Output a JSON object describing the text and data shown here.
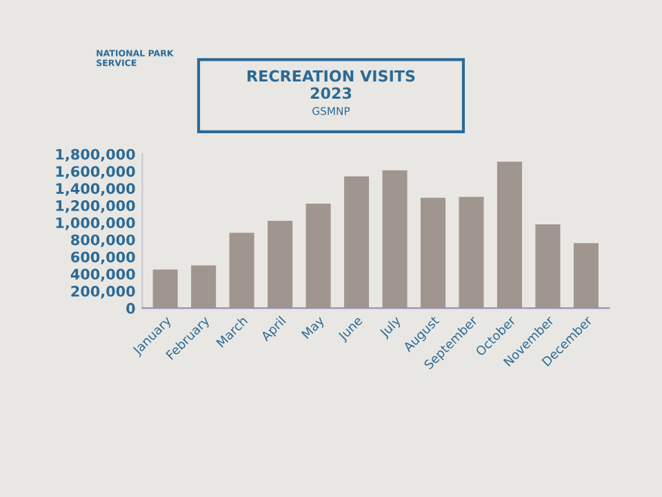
{
  "chart_data": {
    "type": "bar",
    "title": "RECREATION VISITS\n2023",
    "subtitle": "GSMNP",
    "annotations": [
      "NATIONAL PARK\nSERVICE"
    ],
    "categories": [
      "January",
      "February",
      "March",
      "April",
      "May",
      "June",
      "July",
      "August",
      "September",
      "October",
      "November",
      "December"
    ],
    "values": [
      450000,
      500000,
      880000,
      1020000,
      1220000,
      1540000,
      1610000,
      1290000,
      1300000,
      1710000,
      980000,
      760000
    ],
    "color": "#a0958f",
    "ylim": [
      0,
      1800000
    ],
    "yticks": [
      {
        "value": 0,
        "label": "0"
      },
      {
        "value": 200000,
        "label": "200,000"
      },
      {
        "value": 400000,
        "label": "400,000"
      },
      {
        "value": 600000,
        "label": "600,000"
      },
      {
        "value": 800000,
        "label": "800,000"
      },
      {
        "value": 1000000,
        "label": "1,000,000"
      },
      {
        "value": 1200000,
        "label": "1,200,000"
      },
      {
        "value": 1400000,
        "label": "1,400,000"
      },
      {
        "value": 1600000,
        "label": "1,600,000"
      },
      {
        "value": 1800000,
        "label": "1,800,000"
      }
    ],
    "grid": false,
    "legend": false
  }
}
